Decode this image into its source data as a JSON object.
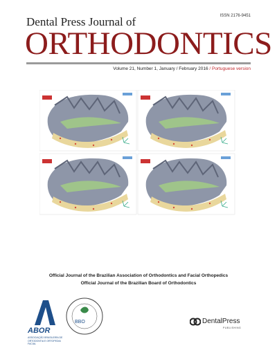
{
  "header": {
    "issn": "ISSN 2176-9451",
    "journal_prefix": "Dental Press Journal of",
    "journal_title": "ORTHODONTICS",
    "volume": "Volume 21, Number 1, January / February 2016",
    "language": "/ Portuguese version"
  },
  "affiliations": [
    "Official Journal of the Brazilian Association of Orthodontics and Facial Orthopedics",
    "Official Journal of the Brazilian Board of Orthodontics"
  ],
  "logos": {
    "abor": {
      "name": "ABOR",
      "subtitle": "ASSOCIAÇÃO BRASILEIRA DE ORTODONTIA E ORTOPEDIA FACIAL"
    },
    "bbo": {
      "name": "BBO"
    },
    "publisher": {
      "name": "DentalPress",
      "tagline": "PUBLISHING"
    }
  }
}
